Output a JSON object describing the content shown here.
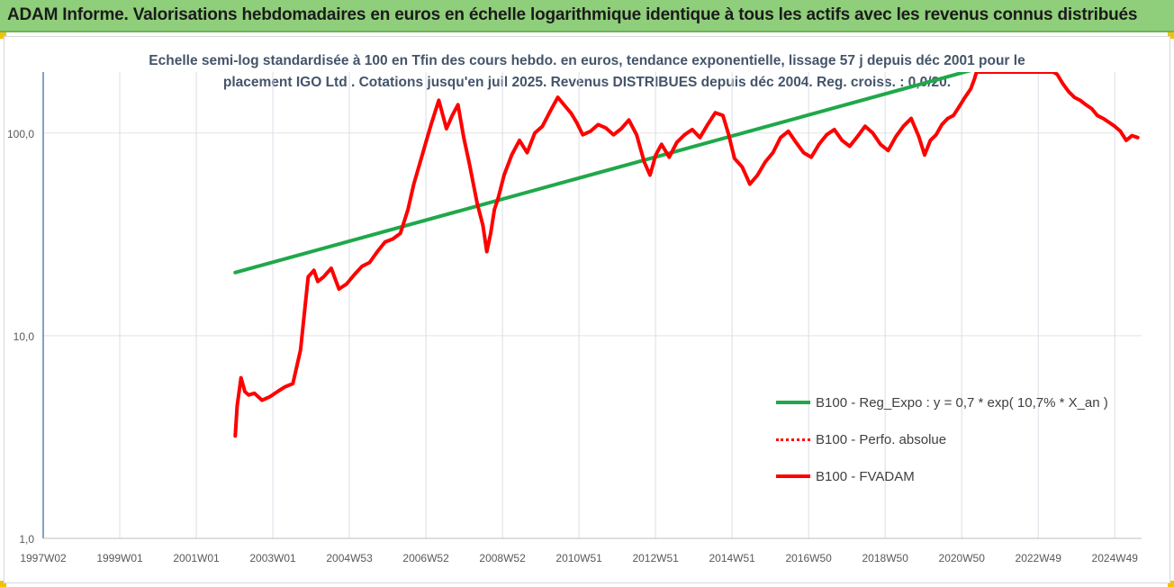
{
  "header": {
    "title": "ADAM Informe. Valorisations hebdomadaires en euros en échelle logarithmique identique à tous les actifs avec les revenus connus distribués",
    "bar_color": "#8fce7a"
  },
  "chart_data": {
    "type": "line",
    "title_line1": "Echelle semi-log standardisée à 100 en Tfin des cours hebdo. en euros, tendance exponentielle, lissage 57 j depuis déc 2001 pour le",
    "title_line2": "placement IGO Ltd . Cotations jusqu'en juil 2025. Revenus DISTRIBUES depuis déc 2004. Reg. croiss. : 0,0/20.",
    "yscale": "log",
    "ylim": [
      1,
      200
    ],
    "yticks": [
      {
        "value": 1,
        "label": "1,0"
      },
      {
        "value": 10,
        "label": "10,0"
      },
      {
        "value": 100,
        "label": "100,0"
      }
    ],
    "xlim": [
      1997.0,
      2025.6
    ],
    "xtick_labels": [
      "1997W02",
      "1999W01",
      "2001W01",
      "2003W01",
      "2004W53",
      "2006W52",
      "2008W52",
      "2010W51",
      "2012W51",
      "2014W51",
      "2016W50",
      "2018W50",
      "2020W50",
      "2022W49",
      "2024W49"
    ],
    "grid": "vertical",
    "legend_position": "bottom-right",
    "series": [
      {
        "name": "B100 - Reg_Expo : y = 0,7 * exp( 10,7% *  X_an )",
        "color": "#1fa84a",
        "style": "solid",
        "x": [
          2002.0,
          2021.2
        ],
        "y": [
          20.5,
          205
        ]
      },
      {
        "name": "B100 - Perfo. absolue",
        "color": "#ff0000",
        "style": "dotted",
        "x": [],
        "y": []
      },
      {
        "name": "B100 - FVADAM",
        "color": "#ff0000",
        "style": "solid",
        "x": [
          2002.0,
          2002.05,
          2002.15,
          2002.25,
          2002.35,
          2002.5,
          2002.7,
          2002.9,
          2003.1,
          2003.3,
          2003.5,
          2003.7,
          2003.9,
          2004.05,
          2004.15,
          2004.3,
          2004.5,
          2004.7,
          2004.9,
          2005.1,
          2005.3,
          2005.5,
          2005.7,
          2005.9,
          2006.1,
          2006.3,
          2006.5,
          2006.65,
          2006.8,
          2006.95,
          2007.1,
          2007.3,
          2007.5,
          2007.65,
          2007.8,
          2007.95,
          2008.1,
          2008.3,
          2008.45,
          2008.55,
          2008.65,
          2008.75,
          2008.85,
          2009.0,
          2009.2,
          2009.4,
          2009.6,
          2009.8,
          2010.0,
          2010.2,
          2010.4,
          2010.6,
          2010.75,
          2010.9,
          2011.05,
          2011.25,
          2011.45,
          2011.65,
          2011.85,
          2012.05,
          2012.25,
          2012.45,
          2012.65,
          2012.8,
          2012.95,
          2013.1,
          2013.3,
          2013.5,
          2013.7,
          2013.9,
          2014.1,
          2014.3,
          2014.5,
          2014.7,
          2014.85,
          2015.0,
          2015.2,
          2015.4,
          2015.6,
          2015.8,
          2016.0,
          2016.2,
          2016.4,
          2016.6,
          2016.8,
          2017.0,
          2017.2,
          2017.4,
          2017.6,
          2017.8,
          2018.0,
          2018.2,
          2018.4,
          2018.6,
          2018.8,
          2019.0,
          2019.2,
          2019.4,
          2019.6,
          2019.8,
          2019.95,
          2020.1,
          2020.25,
          2020.4,
          2020.55,
          2020.7,
          2020.85,
          2021.0,
          2021.15,
          2021.25,
          2021.3,
          2023.3,
          2023.4,
          2023.55,
          2023.7,
          2023.85,
          2024.0,
          2024.15,
          2024.3,
          2024.45,
          2024.6,
          2024.75,
          2024.9,
          2025.05,
          2025.2,
          2025.35,
          2025.5
        ],
        "y": [
          3.2,
          4.5,
          6.2,
          5.3,
          5.1,
          5.2,
          4.8,
          5.0,
          5.3,
          5.6,
          5.8,
          8.5,
          19.5,
          21.0,
          18.5,
          19.5,
          21.5,
          17.0,
          18.0,
          20.0,
          22.0,
          23.0,
          26.0,
          29.0,
          30.0,
          32.0,
          42.0,
          56.0,
          70.0,
          88.0,
          110.0,
          145.0,
          105.0,
          122.0,
          138.0,
          95.0,
          70.0,
          45.0,
          35.0,
          26.0,
          32.0,
          42.0,
          48.0,
          62.0,
          78.0,
          92.0,
          80.0,
          100.0,
          108.0,
          128.0,
          150.0,
          135.0,
          125.0,
          112.0,
          98.0,
          102.0,
          110.0,
          106.0,
          98.0,
          105.0,
          116.0,
          98.0,
          72.0,
          62.0,
          78.0,
          88.0,
          76.0,
          90.0,
          98.0,
          104.0,
          95.0,
          110.0,
          126.0,
          122.0,
          98.0,
          75.0,
          68.0,
          56.0,
          62.0,
          72.0,
          80.0,
          95.0,
          102.0,
          90.0,
          80.0,
          76.0,
          88.0,
          98.0,
          104.0,
          92.0,
          86.0,
          96.0,
          108.0,
          100.0,
          88.0,
          82.0,
          96.0,
          108.0,
          118.0,
          96.0,
          78.0,
          92.0,
          98.0,
          110.0,
          118.0,
          122.0,
          135.0,
          150.0,
          165.0,
          185.0,
          200.0,
          200.0,
          195.0,
          175.0,
          160.0,
          150.0,
          145.0,
          138.0,
          132.0,
          122.0,
          118.0,
          113.0,
          108.0,
          102.0,
          92.0,
          97.0,
          95.0
        ]
      }
    ]
  }
}
